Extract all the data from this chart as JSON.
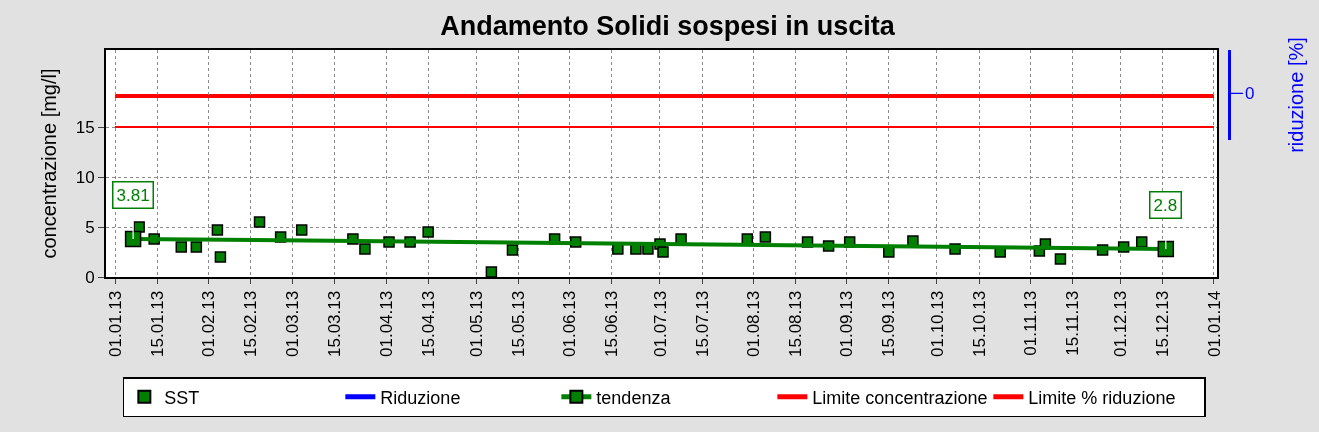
{
  "chart_data": {
    "type": "scatter",
    "title": "Andamento Solidi sospesi in uscita",
    "ylabel": "concentrazione [mg/l]",
    "y2label": "riduzione [%]",
    "x": [
      "2013-01-09",
      "2013-01-14",
      "2013-01-23",
      "2013-01-28",
      "2013-02-04",
      "2013-02-05",
      "2013-02-18",
      "2013-02-25",
      "2013-03-04",
      "2013-03-21",
      "2013-03-25",
      "2013-04-02",
      "2013-04-09",
      "2013-04-15",
      "2013-05-06",
      "2013-05-13",
      "2013-05-27",
      "2013-06-03",
      "2013-06-17",
      "2013-06-23",
      "2013-06-27",
      "2013-07-01",
      "2013-07-02",
      "2013-07-08",
      "2013-07-30",
      "2013-08-05",
      "2013-08-19",
      "2013-08-26",
      "2013-09-02",
      "2013-09-15",
      "2013-09-23",
      "2013-10-07",
      "2013-10-22",
      "2013-11-04",
      "2013-11-06",
      "2013-11-11",
      "2013-11-25",
      "2013-12-02",
      "2013-12-08"
    ],
    "series": [
      {
        "name": "SST",
        "marker": "square",
        "color": "#007f00",
        "values": [
          5.0,
          3.8,
          3.0,
          3.0,
          4.7,
          2.0,
          5.5,
          4.0,
          4.7,
          3.8,
          2.8,
          3.5,
          3.5,
          4.5,
          0.5,
          2.7,
          3.8,
          3.5,
          2.8,
          2.8,
          2.8,
          3.3,
          2.5,
          3.8,
          3.8,
          4.0,
          3.5,
          3.1,
          3.5,
          2.5,
          3.6,
          2.8,
          2.5,
          2.6,
          3.3,
          1.8,
          2.7,
          3.0,
          3.5
        ]
      },
      {
        "name": "Riduzione",
        "type": "line",
        "axis": "y2",
        "color": "#0000ff",
        "values": [
          null,
          null,
          null,
          null,
          null,
          null,
          null,
          null,
          null,
          null,
          null,
          null,
          null,
          null,
          null,
          null,
          null,
          null,
          null,
          null,
          null,
          null,
          null,
          null,
          null,
          null,
          null,
          null,
          null,
          null,
          null,
          null,
          null,
          null,
          null,
          null,
          null,
          null,
          null
        ]
      },
      {
        "name": "tendenza",
        "type": "line",
        "marker": "square",
        "color": "#008000",
        "x": [
          "2013-01-07",
          "2013-12-16"
        ],
        "values": [
          3.81,
          2.8
        ],
        "value_labels": [
          "3.81",
          "2.8"
        ]
      }
    ],
    "xlim": [
      "2012-12-29",
      "2014-01-02"
    ],
    "xticks": [
      {
        "value": "2013-01-01",
        "label": "01.01.13"
      },
      {
        "value": "2013-01-15",
        "label": "15.01.13"
      },
      {
        "value": "2013-02-01",
        "label": "01.02.13"
      },
      {
        "value": "2013-02-15",
        "label": "15.02.13"
      },
      {
        "value": "2013-03-01",
        "label": "01.03.13"
      },
      {
        "value": "2013-03-15",
        "label": "15.03.13"
      },
      {
        "value": "2013-04-01",
        "label": "01.04.13"
      },
      {
        "value": "2013-04-15",
        "label": "15.04.13"
      },
      {
        "value": "2013-05-01",
        "label": "01.05.13"
      },
      {
        "value": "2013-05-15",
        "label": "15.05.13"
      },
      {
        "value": "2013-06-01",
        "label": "01.06.13"
      },
      {
        "value": "2013-06-15",
        "label": "15.06.13"
      },
      {
        "value": "2013-07-01",
        "label": "01.07.13"
      },
      {
        "value": "2013-07-15",
        "label": "15.07.13"
      },
      {
        "value": "2013-08-01",
        "label": "01.08.13"
      },
      {
        "value": "2013-08-15",
        "label": "15.08.13"
      },
      {
        "value": "2013-09-01",
        "label": "01.09.13"
      },
      {
        "value": "2013-09-15",
        "label": "15.09.13"
      },
      {
        "value": "2013-10-01",
        "label": "01.10.13"
      },
      {
        "value": "2013-10-15",
        "label": "15.10.13"
      },
      {
        "value": "2013-11-01",
        "label": "01.11.13"
      },
      {
        "value": "2013-11-15",
        "label": "15.11.13"
      },
      {
        "value": "2013-12-01",
        "label": "01.12.13"
      },
      {
        "value": "2013-12-15",
        "label": "15.12.13"
      },
      {
        "value": "2014-01-01",
        "label": "01.01.14"
      }
    ],
    "ylim": [
      0,
      22.7
    ],
    "yticks": [
      0,
      5,
      10,
      15
    ],
    "ref_lines": [
      {
        "axis": "y",
        "value": 15,
        "label": "Limite concentrazione",
        "color": "#ff0000"
      },
      {
        "axis": "y",
        "value": 18.1,
        "label": "Limite % riduzione",
        "color": "#ff0000"
      }
    ],
    "annotations": [
      "0"
    ],
    "grid": true,
    "legend": "bottom"
  }
}
